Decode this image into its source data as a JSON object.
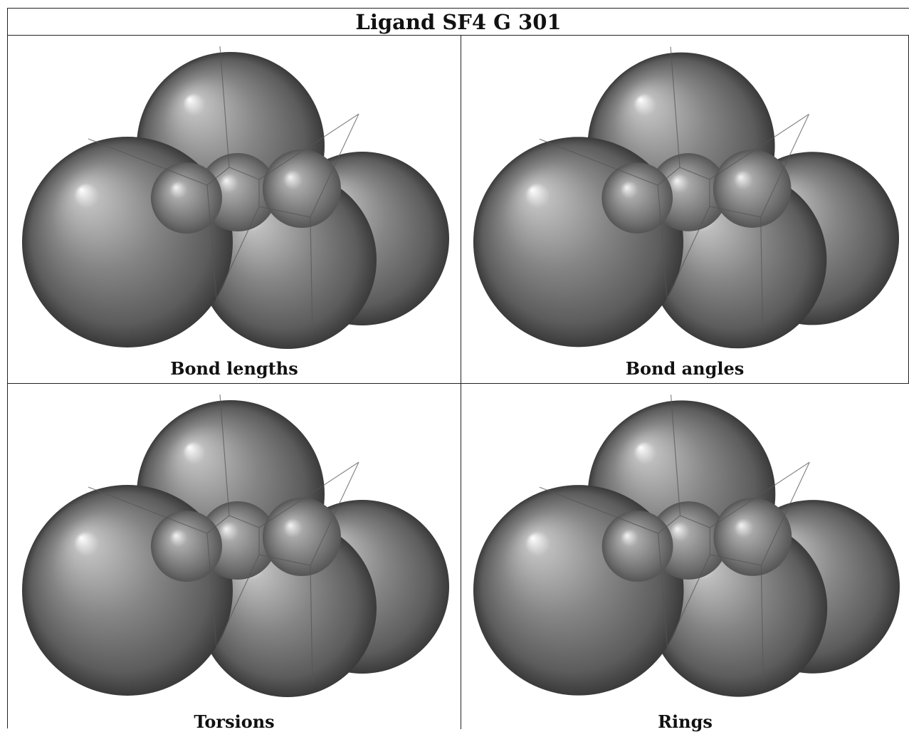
{
  "title": "Ligand SF4 G 301",
  "panels": [
    {
      "caption": "Bond lengths",
      "image": "sf4-space-filling-model"
    },
    {
      "caption": "Bond angles",
      "image": "sf4-space-filling-model"
    },
    {
      "caption": "Torsions",
      "image": "sf4-space-filling-model"
    },
    {
      "caption": "Rings",
      "image": "sf4-space-filling-model"
    }
  ],
  "colors": {
    "sphere_highlight": "#ffffff",
    "sphere_mid": "#8a8a8a",
    "sphere_shadow": "#3a3a3a",
    "border": "#222222"
  }
}
